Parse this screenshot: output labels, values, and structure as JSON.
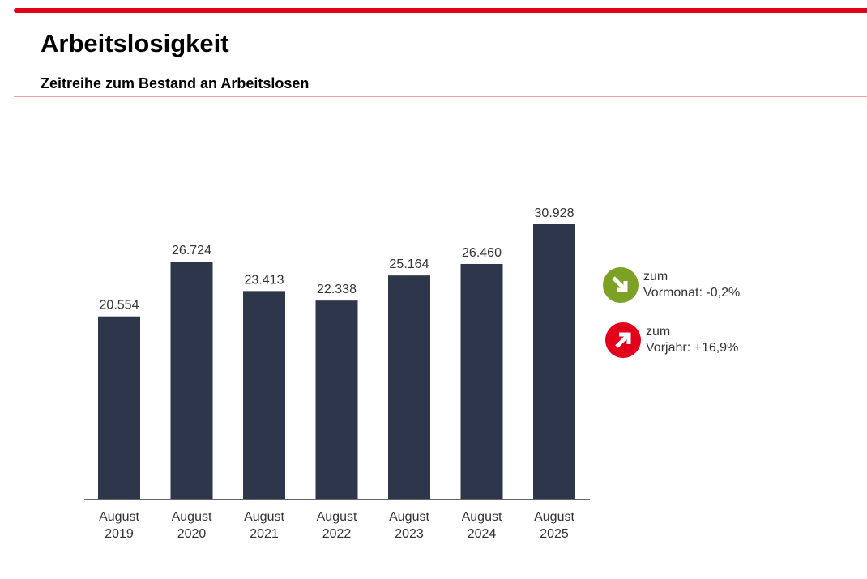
{
  "header": {
    "title": "Arbeitslosigkeit",
    "subtitle": "Zeitreihe zum Bestand an Arbeitslosen"
  },
  "colors": {
    "accent": "#e2001a",
    "bar": "#2e364b",
    "down": "#7ca125",
    "up": "#e2001a"
  },
  "chart_data": {
    "type": "bar",
    "title": "",
    "categories": [
      [
        "August",
        "2019"
      ],
      [
        "August",
        "2020"
      ],
      [
        "August",
        "2021"
      ],
      [
        "August",
        "2022"
      ],
      [
        "August",
        "2023"
      ],
      [
        "August",
        "2024"
      ],
      [
        "August",
        "2025"
      ]
    ],
    "values": [
      20554,
      26724,
      23413,
      22338,
      25164,
      26460,
      30928
    ],
    "data_labels": [
      "20.554",
      "26.724",
      "23.413",
      "22.338",
      "25.164",
      "26.460",
      "30.928"
    ],
    "ylim": [
      0,
      31000
    ],
    "grid": false
  },
  "indicators": [
    {
      "line1": "zum",
      "line2": "Vormonat:",
      "value": "-0,2%",
      "icon": "arrow-down-right-icon",
      "color": "#7ca125"
    },
    {
      "line1": "zum",
      "line2": "Vorjahr:",
      "value": "+16,9%",
      "icon": "arrow-up-right-icon",
      "color": "#e2001a"
    }
  ]
}
